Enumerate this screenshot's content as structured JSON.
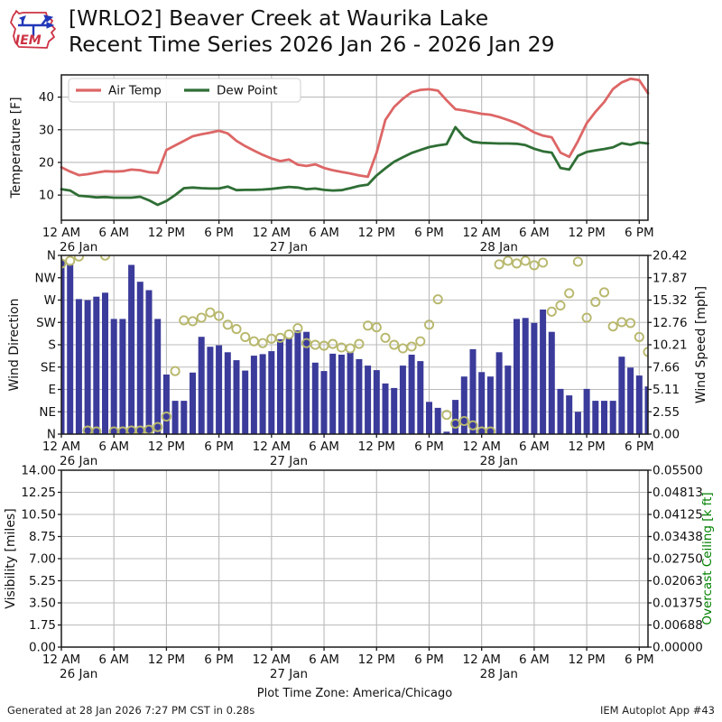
{
  "header": {
    "title_line1": "[WRLO2] Beaver Creek at Waurika Lake",
    "title_line2": "Recent Time Series 2026 Jan 26 - 2026 Jan 29",
    "logo_text": "IEM"
  },
  "footer": {
    "timezone_note": "Plot Time Zone: America/Chicago",
    "generated": "Generated at 28 Jan 2026 7:27 PM CST in 0.28s",
    "app": "IEM Autoplot App #43"
  },
  "colors": {
    "air_temp": "#dd6666",
    "dew_point": "#2f6e35",
    "wind_bar": "#3b3b9b",
    "wind_speed_marker": "#b8b86e",
    "grid": "#bbbbbb",
    "spine": "#1a1a1a",
    "ceiling_label": "#008000",
    "text": "#111111",
    "logo_red": "#cc3344",
    "logo_blue": "#2238b8"
  },
  "time_axis": {
    "x_unit": "hours since 12 AM 26 Jan, America/Chicago",
    "x_step_hours": 1,
    "tick_every_hours": 6,
    "tick_labels": [
      "12 AM",
      "6 AM",
      "12 PM",
      "6 PM",
      "12 AM",
      "6 AM",
      "12 PM",
      "6 PM",
      "12 AM",
      "6 AM",
      "12 PM",
      "6 PM"
    ],
    "date_labels": [
      {
        "tick_index": 0,
        "label": "26 Jan"
      },
      {
        "tick_index": 4,
        "label": "27 Jan"
      },
      {
        "tick_index": 8,
        "label": "28 Jan"
      }
    ]
  },
  "chart_data": [
    {
      "type": "line",
      "panel": "temperature",
      "ylabel": "Temperature [F]",
      "yticks": [
        10,
        20,
        30,
        40
      ],
      "ylim": [
        2.3,
        46.8
      ],
      "grid": true,
      "legend_position": "upper left",
      "series": [
        {
          "name": "Air Temp",
          "values": [
            18.5,
            17.2,
            16.1,
            16.4,
            16.9,
            17.3,
            17.2,
            17.3,
            17.8,
            17.6,
            17.0,
            16.8,
            23.8,
            25.2,
            26.6,
            28.0,
            28.6,
            29.1,
            29.7,
            28.9,
            26.6,
            25.0,
            23.6,
            22.3,
            21.2,
            20.4,
            20.9,
            19.3,
            18.9,
            19.4,
            18.3,
            17.6,
            17.1,
            16.6,
            16.0,
            15.6,
            23.0,
            33.0,
            37.0,
            39.5,
            41.5,
            42.2,
            42.4,
            42.0,
            39.0,
            36.3,
            35.9,
            35.4,
            34.9,
            34.6,
            33.9,
            33.0,
            32.0,
            30.7,
            29.2,
            28.2,
            27.7,
            23.0,
            21.7,
            26.5,
            32.0,
            35.5,
            38.5,
            42.5,
            44.5,
            45.6,
            45.2,
            41.2
          ]
        },
        {
          "name": "Dew Point",
          "values": [
            11.8,
            11.4,
            9.8,
            9.6,
            9.3,
            9.4,
            9.2,
            9.2,
            9.2,
            9.5,
            8.4,
            7.0,
            8.2,
            10.0,
            12.1,
            12.3,
            12.1,
            12.0,
            12.0,
            12.6,
            11.5,
            11.6,
            11.6,
            11.7,
            11.9,
            12.2,
            12.5,
            12.3,
            11.8,
            12.0,
            11.6,
            11.4,
            11.5,
            12.1,
            12.8,
            13.2,
            16.0,
            18.2,
            20.2,
            21.6,
            22.9,
            23.8,
            24.7,
            25.2,
            25.6,
            30.8,
            27.7,
            26.3,
            26.0,
            25.9,
            25.8,
            25.8,
            25.7,
            25.3,
            24.2,
            23.4,
            23.0,
            18.3,
            17.8,
            22.0,
            23.2,
            23.7,
            24.1,
            24.6,
            25.9,
            25.4,
            26.1,
            25.8
          ]
        }
      ]
    },
    {
      "type": "bar",
      "panel": "wind",
      "ylabel_left": "Wind Direction",
      "yticks_left_bottom_to_top": [
        "N",
        "NE",
        "E",
        "SE",
        "S",
        "SW",
        "W",
        "NW",
        "N"
      ],
      "yticks_left_degrees": [
        0,
        45,
        90,
        135,
        180,
        225,
        270,
        315,
        360
      ],
      "ylim_left_degrees": [
        0,
        360
      ],
      "ylabel_right": "Wind Speed [mph]",
      "yticks_right": [
        "0.00",
        "2.55",
        "5.11",
        "7.66",
        "10.21",
        "12.76",
        "15.32",
        "17.87",
        "20.42"
      ],
      "ylim_right_mph": [
        0,
        20.42
      ],
      "grid": true,
      "bars_wind_direction_deg": [
        350,
        343,
        272,
        270,
        277,
        285,
        232,
        232,
        341,
        307,
        290,
        232,
        120,
        67,
        67,
        124,
        196,
        176,
        179,
        165,
        149,
        128,
        158,
        161,
        167,
        191,
        194,
        209,
        206,
        144,
        127,
        162,
        160,
        165,
        151,
        138,
        129,
        102,
        93,
        138,
        160,
        147,
        65,
        53,
        5,
        69,
        116,
        171,
        125,
        116,
        165,
        138,
        232,
        234,
        224,
        251,
        206,
        91,
        78,
        45,
        91,
        67,
        67,
        67,
        156,
        134,
        118,
        96
      ],
      "scatter_wind_speed_mph": [
        19.5,
        19.8,
        20.3,
        0.4,
        0.3,
        20.4,
        0.3,
        0.3,
        0.4,
        0.4,
        0.5,
        0.8,
        2.0,
        7.2,
        13.0,
        12.9,
        13.3,
        13.9,
        13.5,
        12.5,
        12.0,
        11.1,
        10.6,
        10.4,
        10.9,
        11.0,
        11.4,
        12.1,
        10.4,
        10.2,
        10.1,
        10.3,
        9.9,
        9.8,
        10.3,
        12.4,
        12.2,
        11.0,
        10.2,
        9.8,
        10.0,
        10.6,
        12.5,
        15.4,
        2.2,
        1.2,
        1.5,
        1.0,
        0.3,
        0.3,
        19.4,
        19.8,
        19.5,
        19.8,
        19.3,
        19.6,
        14.0,
        14.7,
        16.1,
        19.7,
        13.3,
        15.1,
        16.2,
        12.3,
        12.8,
        12.7,
        11.1,
        9.4
      ]
    },
    {
      "type": "line",
      "panel": "visibility",
      "ylabel_left": "Visibility [miles]",
      "yticks_left": [
        "0.00",
        "1.75",
        "3.50",
        "5.25",
        "7.00",
        "8.75",
        "10.50",
        "12.25",
        "14.00"
      ],
      "ylim_left": [
        0,
        14
      ],
      "ylabel_right": "Overcast Ceiling [k ft]",
      "yticks_right": [
        "0.00000",
        "0.00688",
        "0.01375",
        "0.02063",
        "0.02750",
        "0.03438",
        "0.04125",
        "0.04813",
        "0.05500"
      ],
      "ylim_right": [
        0,
        0.055
      ],
      "grid": true,
      "series": [],
      "note": "no data plotted"
    }
  ]
}
